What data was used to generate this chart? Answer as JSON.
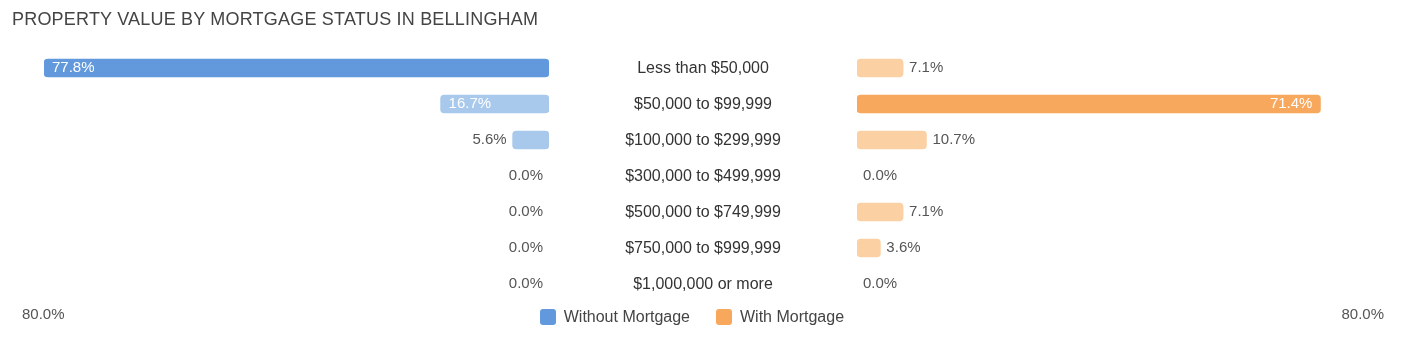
{
  "chart_data": [
    {
      "type": "bar",
      "orientation": "horizontal",
      "title": "PROPERTY VALUE BY MORTGAGE STATUS IN BELLINGHAM",
      "categories": [
        "Less than $50,000",
        "$50,000 to $99,999",
        "$100,000 to $299,999",
        "$300,000 to $499,999",
        "$500,000 to $749,999",
        "$750,000 to $999,999",
        "$1,000,000 or more"
      ],
      "annotations": [
        "80.0%"
      ],
      "legend": "bottom",
      "series": [
        {
          "name": "Without Mortgage",
          "color": "#6199dc",
          "colors": [
            "#6199dc",
            "#a8c8ec",
            "#a8c8ec",
            null,
            null,
            null,
            null
          ],
          "values": [
            77.8,
            16.7,
            5.6,
            0,
            0,
            0,
            0
          ],
          "value_labels": [
            "77.8%",
            "16.7%",
            "5.6%",
            "0.0%",
            "0.0%",
            "0.0%",
            "0.0%"
          ]
        }
      ]
    },
    {
      "type": "bar",
      "orientation": "horizontal",
      "categories": [
        null,
        null,
        null,
        null,
        null,
        null,
        null
      ],
      "annotations": [
        "80.0%"
      ],
      "legend": "bottom",
      "series": [
        {
          "name": "With Mortgage",
          "color": "#f7a85c",
          "colors": [
            "#fbd0a3",
            "#f7a85c",
            "#fbd0a3",
            null,
            "#fbd0a3",
            "#fbd0a3",
            null
          ],
          "values": [
            7.1,
            71.4,
            10.7,
            0,
            7.1,
            3.6,
            0
          ],
          "value_labels": [
            "7.1%",
            "71.4%",
            "10.7%",
            "0.0%",
            "7.1%",
            "3.6%",
            "0.0%"
          ]
        }
      ]
    }
  ]
}
